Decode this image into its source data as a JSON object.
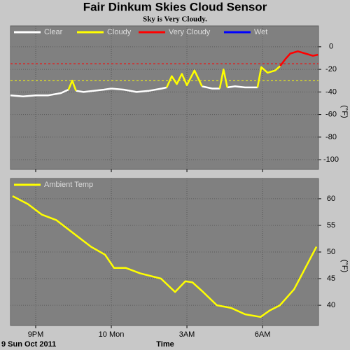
{
  "chart_data": [
    {
      "type": "line",
      "title": "Fair Dinkum Skies Cloud Sensor",
      "subtitle": "Sky is Very Cloudy.",
      "ylabel": "(°F)",
      "x": [
        20.0,
        20.5,
        21.0,
        21.5,
        22.0,
        22.3,
        22.45,
        22.6,
        22.9,
        23.3,
        23.7,
        24.0,
        24.5,
        25.0,
        25.5,
        26.0,
        26.2,
        26.4,
        26.6,
        26.8,
        27.0,
        27.3,
        27.6,
        28.0,
        28.3,
        28.45,
        28.6,
        28.9,
        29.3,
        29.8,
        29.95,
        30.2,
        30.5,
        30.7,
        30.9,
        31.1,
        31.4,
        31.7,
        32.0,
        32.2
      ],
      "series": [
        {
          "name": "Clear",
          "color": "#ffffff",
          "values": [
            -43,
            -44,
            -43,
            -43,
            -41,
            -38,
            null,
            -39,
            -40,
            -39,
            -38,
            -37,
            -38,
            -40,
            -39,
            -37,
            -36,
            null,
            null,
            null,
            null,
            null,
            -35,
            -37,
            -37,
            null,
            -36,
            -35,
            -36,
            -36,
            null,
            null,
            null,
            null,
            null,
            null,
            null,
            null,
            null,
            null
          ]
        },
        {
          "name": "Cloudy",
          "color": "#ffff00",
          "values": [
            null,
            null,
            null,
            null,
            null,
            -38,
            -30,
            -39,
            null,
            null,
            null,
            null,
            null,
            null,
            null,
            null,
            -36,
            -26,
            -33,
            -24,
            -34,
            -21,
            -35,
            null,
            -37,
            -20,
            -36,
            null,
            null,
            -36,
            -18,
            -23,
            -21,
            -17,
            null,
            null,
            null,
            null,
            null,
            null
          ]
        },
        {
          "name": "Very Cloudy",
          "color": "#ff0000",
          "values": [
            null,
            null,
            null,
            null,
            null,
            null,
            null,
            null,
            null,
            null,
            null,
            null,
            null,
            null,
            null,
            null,
            null,
            null,
            null,
            null,
            null,
            null,
            null,
            null,
            null,
            null,
            null,
            null,
            null,
            null,
            null,
            null,
            null,
            -17,
            -11,
            -6,
            -4,
            -6,
            -8,
            -7
          ]
        },
        {
          "name": "Wet",
          "color": "#0000ff",
          "values": [
            null,
            null,
            null,
            null,
            null,
            null,
            null,
            null,
            null,
            null,
            null,
            null,
            null,
            null,
            null,
            null,
            null,
            null,
            null,
            null,
            null,
            null,
            null,
            null,
            null,
            null,
            null,
            null,
            null,
            null,
            null,
            null,
            null,
            null,
            null,
            null,
            null,
            null,
            null,
            null
          ]
        }
      ],
      "thresholds": [
        {
          "value": -15,
          "color": "#ff0000"
        },
        {
          "value": -30,
          "color": "#ffff00"
        }
      ],
      "xlim": [
        20.0,
        32.22
      ],
      "xticks": [
        21,
        24,
        27,
        30
      ],
      "ylim": [
        -108.6,
        18.5
      ],
      "yticks": [
        0,
        -20,
        -40,
        -60,
        -80,
        -100
      ],
      "grid": true
    },
    {
      "type": "line",
      "ylabel": "(°F)",
      "xlabel": "Time",
      "date_label": "9 Sun Oct 2011",
      "x": [
        20.08,
        20.69,
        21.25,
        21.81,
        22.64,
        23.19,
        23.75,
        24.11,
        24.58,
        25.14,
        25.97,
        26.53,
        26.94,
        27.22,
        27.64,
        28.19,
        28.75,
        29.31,
        29.92,
        30.28,
        30.69,
        31.25,
        31.53,
        32.14
      ],
      "series": [
        {
          "name": "Ambient Temp",
          "color": "#ffff00",
          "values": [
            60.5,
            59,
            57,
            56,
            53,
            51,
            49.5,
            47,
            47,
            46,
            45,
            42.5,
            44.5,
            44.3,
            42.5,
            40,
            39.5,
            38.3,
            37.8,
            39,
            40,
            43,
            45.5,
            51
          ]
        }
      ],
      "xlim": [
        20.0,
        32.22
      ],
      "xticks": [
        {
          "value": 21,
          "label": "9PM"
        },
        {
          "value": 24,
          "label": "10 Mon"
        },
        {
          "value": 27,
          "label": "3AM"
        },
        {
          "value": 30,
          "label": "6AM"
        }
      ],
      "ylim": [
        36.2,
        63.8
      ],
      "yticks": [
        40,
        45,
        50,
        55,
        60
      ],
      "grid": true
    }
  ]
}
